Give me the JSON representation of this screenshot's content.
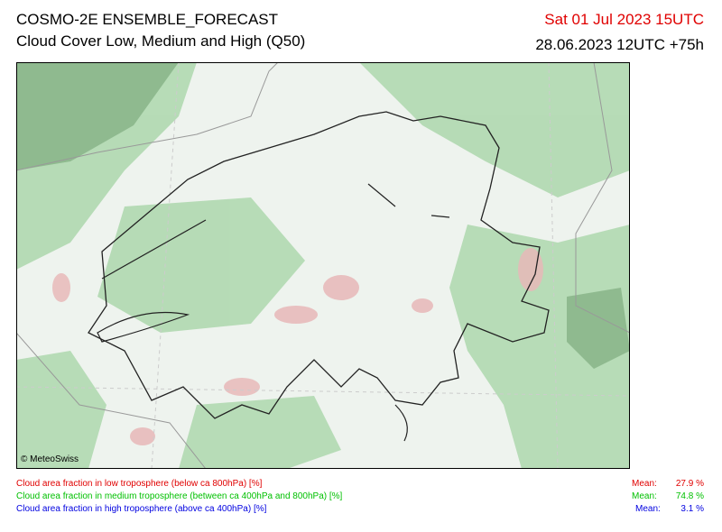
{
  "header": {
    "title": "COSMO-2E ENSEMBLE_FORECAST",
    "subtitle": "Cloud Cover Low, Medium and High (Q50)",
    "valid_time": "Sat 01 Jul 2023 15UTC",
    "run_time": "28.06.2023 12UTC +75h"
  },
  "map": {
    "copyright": "© MeteoSwiss"
  },
  "legend": [
    {
      "label": "Cloud area fraction in low troposphere (below ca 800hPa) [%]",
      "mean_label": "Mean:",
      "mean": "27.9 %"
    },
    {
      "label": "Cloud area fraction in medium troposphere (between ca 400hPa and 800hPa) [%]",
      "mean_label": "Mean:",
      "mean": "74.8 %"
    },
    {
      "label": "Cloud area fraction in high troposphere (above ca 400hPa) [%]",
      "mean_label": "Mean:",
      "mean": "3.1 %"
    }
  ]
}
